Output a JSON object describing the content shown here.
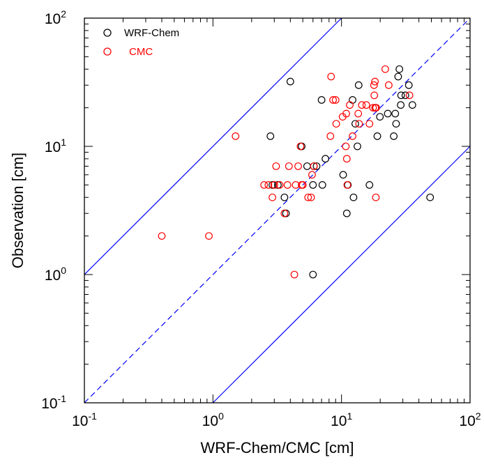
{
  "chart_data": {
    "type": "scatter",
    "title": "",
    "xlabel": "WRF-Chem/CMC [cm]",
    "ylabel": "Observation [cm]",
    "x_scale": "log",
    "y_scale": "log",
    "xlim": [
      0.1,
      100
    ],
    "ylim": [
      0.1,
      100
    ],
    "xticks": [
      {
        "value": 0.1,
        "base": "10",
        "exp": "-1"
      },
      {
        "value": 1,
        "base": "10",
        "exp": "0"
      },
      {
        "value": 10,
        "base": "10",
        "exp": "1"
      },
      {
        "value": 100,
        "base": "10",
        "exp": "2"
      }
    ],
    "yticks": [
      {
        "value": 0.1,
        "base": "10",
        "exp": "-1"
      },
      {
        "value": 1,
        "base": "10",
        "exp": "0"
      },
      {
        "value": 10,
        "base": "10",
        "exp": "1"
      },
      {
        "value": 100,
        "base": "10",
        "exp": "2"
      }
    ],
    "grid": false,
    "legend_position": "top-left",
    "reference_lines": [
      {
        "style": "dashed",
        "color": "#0000ff",
        "points": [
          [
            0.1,
            0.1
          ],
          [
            100,
            100
          ]
        ]
      },
      {
        "style": "solid",
        "color": "#0000ff",
        "points": [
          [
            0.1,
            1
          ],
          [
            10,
            100
          ]
        ]
      },
      {
        "style": "solid",
        "color": "#0000ff",
        "points": [
          [
            1,
            0.1
          ],
          [
            100,
            10
          ]
        ]
      }
    ],
    "series": [
      {
        "name": "WRF-Chem",
        "color": "#000000",
        "marker": "open-circle",
        "x": [
          2.8,
          2.9,
          3.2,
          3.6,
          3.7,
          4.0,
          4.9,
          5.4,
          6.0,
          6.1,
          6.4,
          7.0,
          7.1,
          7.5,
          10.3,
          11.0,
          11.2,
          12.2,
          12.4,
          12.8,
          13.3,
          13.6,
          16.5,
          18.3,
          19.0,
          19.9,
          22.9,
          25.5,
          26.2,
          26.6,
          27.6,
          28.2,
          28.9,
          29.1,
          31.4,
          33.4,
          35.6,
          48.9,
          6.0
        ],
        "y": [
          12,
          5,
          5,
          4,
          3,
          32,
          10,
          7,
          5,
          7,
          7,
          23,
          5,
          8,
          6,
          3,
          5,
          23,
          4,
          15,
          10,
          30,
          5,
          20,
          12,
          17,
          18,
          12,
          18,
          15,
          35,
          40,
          21,
          25,
          25,
          30,
          21,
          4,
          1
        ]
      },
      {
        "name": "CMC",
        "color": "#ff0000",
        "marker": "open-circle",
        "x": [
          0.4,
          0.93,
          1.5,
          2.5,
          2.7,
          2.9,
          3.0,
          3.1,
          3.3,
          3.6,
          3.8,
          3.9,
          4.4,
          4.6,
          4.8,
          4.9,
          5.0,
          5.5,
          5.8,
          5.9,
          6.1,
          8.2,
          8.3,
          8.6,
          9.0,
          9.1,
          10.2,
          10.8,
          10.9,
          11.0,
          11.1,
          11.6,
          12.2,
          13.5,
          13.7,
          14.4,
          15.6,
          16.5,
          17.6,
          17.9,
          18.0,
          18.2,
          18.3,
          18.5,
          18.6,
          21.9,
          23.3,
          33.8,
          4.3
        ],
        "y": [
          2,
          2,
          12,
          5,
          5,
          4,
          5,
          7,
          5,
          3,
          5,
          7,
          5,
          7,
          10,
          5,
          5,
          4,
          4,
          6,
          7,
          12,
          35,
          23,
          23,
          15,
          17,
          10,
          18,
          8,
          5,
          21,
          12,
          18,
          15,
          21,
          21,
          15,
          20,
          30,
          25,
          32,
          20,
          4,
          20,
          40,
          30,
          25,
          1
        ]
      }
    ]
  }
}
